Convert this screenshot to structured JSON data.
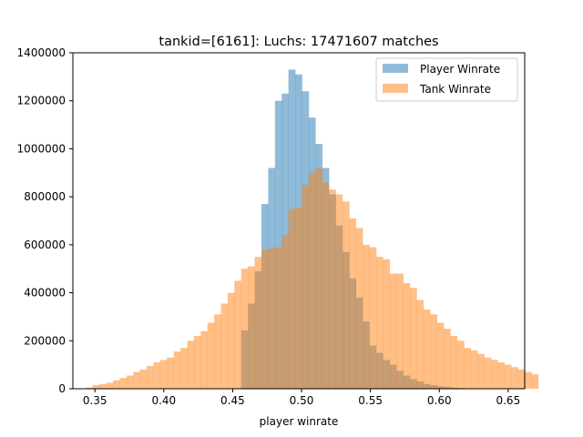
{
  "chart_data": {
    "type": "bar",
    "title": "tankid=[6161]: Luchs: 17471607 matches",
    "xlabel": "player winrate",
    "ylabel": "",
    "xlim": [
      0.334,
      0.662
    ],
    "ylim": [
      0,
      1400000
    ],
    "x_ticks": [
      0.35,
      0.4,
      0.45,
      0.5,
      0.55,
      0.6,
      0.65
    ],
    "x_tick_labels": [
      "0.35",
      "0.40",
      "0.45",
      "0.50",
      "0.55",
      "0.60",
      "0.65"
    ],
    "y_ticks": [
      0,
      200000,
      400000,
      600000,
      800000,
      1000000,
      1200000,
      1400000
    ],
    "y_tick_labels": [
      "0",
      "200000",
      "400000",
      "600000",
      "800000",
      "1000000",
      "1200000",
      "1400000"
    ],
    "legend_position": "top-right",
    "bin_start": 0.3435,
    "bin_width": 0.0049,
    "series": [
      {
        "name": "Player Winrate",
        "color": "#1f77b4",
        "alpha": 0.5,
        "values": [
          0,
          0,
          0,
          0,
          0,
          0,
          0,
          0,
          0,
          0,
          0,
          0,
          0,
          0,
          0,
          0,
          0,
          0,
          0,
          0,
          0,
          0,
          0,
          243000,
          355000,
          490000,
          770000,
          920000,
          1200000,
          1230000,
          1330000,
          1310000,
          1240000,
          1130000,
          1020000,
          920000,
          810000,
          680000,
          570000,
          460000,
          380000,
          280000,
          180000,
          150000,
          120000,
          100000,
          75000,
          55000,
          40000,
          30000,
          20000,
          15000,
          10000,
          8000,
          5000,
          3000,
          1000,
          0,
          0,
          0,
          0,
          0,
          0,
          0,
          0,
          0,
          0
        ]
      },
      {
        "name": "Tank Winrate",
        "color": "#ff7f0e",
        "alpha": 0.5,
        "values": [
          5000,
          15000,
          20000,
          25000,
          35000,
          45000,
          55000,
          70000,
          80000,
          95000,
          110000,
          120000,
          130000,
          155000,
          170000,
          200000,
          220000,
          240000,
          275000,
          310000,
          355000,
          400000,
          450000,
          500000,
          510000,
          550000,
          580000,
          585000,
          590000,
          640000,
          750000,
          755000,
          850000,
          900000,
          920000,
          860000,
          830000,
          810000,
          780000,
          710000,
          670000,
          600000,
          590000,
          550000,
          540000,
          480000,
          480000,
          440000,
          420000,
          370000,
          330000,
          310000,
          275000,
          250000,
          220000,
          200000,
          170000,
          160000,
          145000,
          130000,
          120000,
          110000,
          100000,
          90000,
          80000,
          70000,
          60000
        ]
      }
    ]
  }
}
